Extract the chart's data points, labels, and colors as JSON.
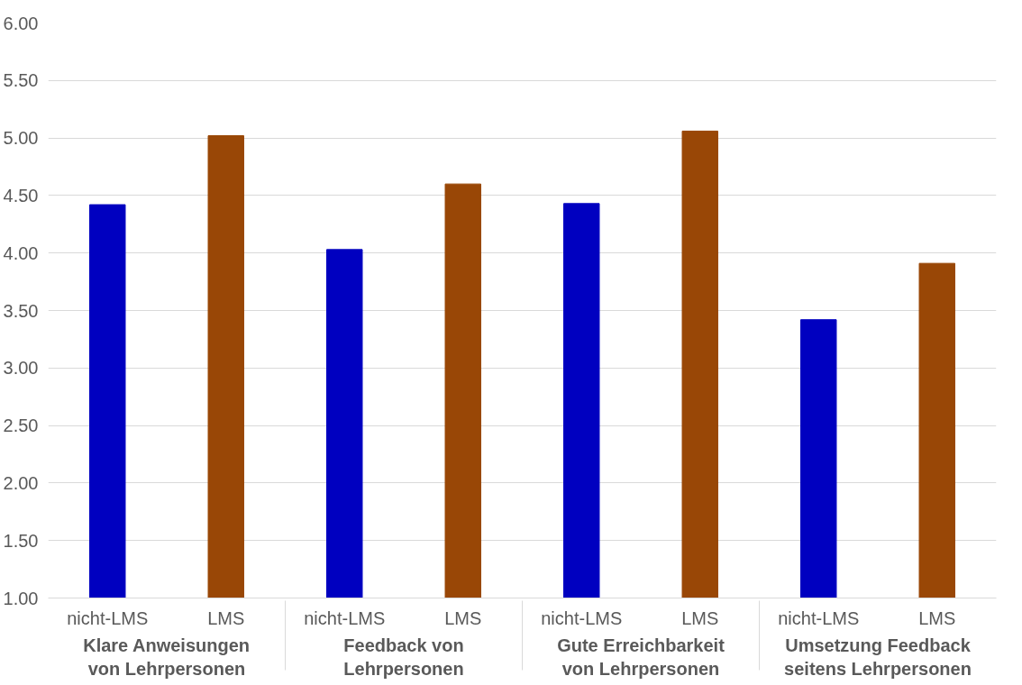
{
  "chart_data": {
    "type": "bar",
    "categories": [
      "Klare Anweisungen von Lehrpersonen",
      "Feedback von Lehrpersonen",
      "Gute Erreichbarkeit von Lehrpersonen",
      "Umsetzung Feedback seitens Lehrpersonen"
    ],
    "series": [
      {
        "name": "nicht-LMS",
        "color": "#0000c0",
        "values": [
          4.42,
          4.03,
          4.43,
          3.42
        ]
      },
      {
        "name": "LMS",
        "color": "#994706",
        "values": [
          5.02,
          4.6,
          5.06,
          3.91
        ]
      }
    ],
    "ylim": [
      1,
      6
    ],
    "yticks": [
      {
        "value": 1,
        "label": "1.00"
      },
      {
        "value": 1.5,
        "label": "1.50"
      },
      {
        "value": 2,
        "label": "2.00"
      },
      {
        "value": 2.5,
        "label": "2.50"
      },
      {
        "value": 3,
        "label": "3.00"
      },
      {
        "value": 3.5,
        "label": "3.50"
      },
      {
        "value": 4,
        "label": "4.00"
      },
      {
        "value": 4.5,
        "label": "4.50"
      },
      {
        "value": 5,
        "label": "5.00"
      },
      {
        "value": 5.5,
        "label": "5.50"
      },
      {
        "value": 6,
        "label": "6.00"
      }
    ],
    "grid": "y",
    "legend": false
  }
}
